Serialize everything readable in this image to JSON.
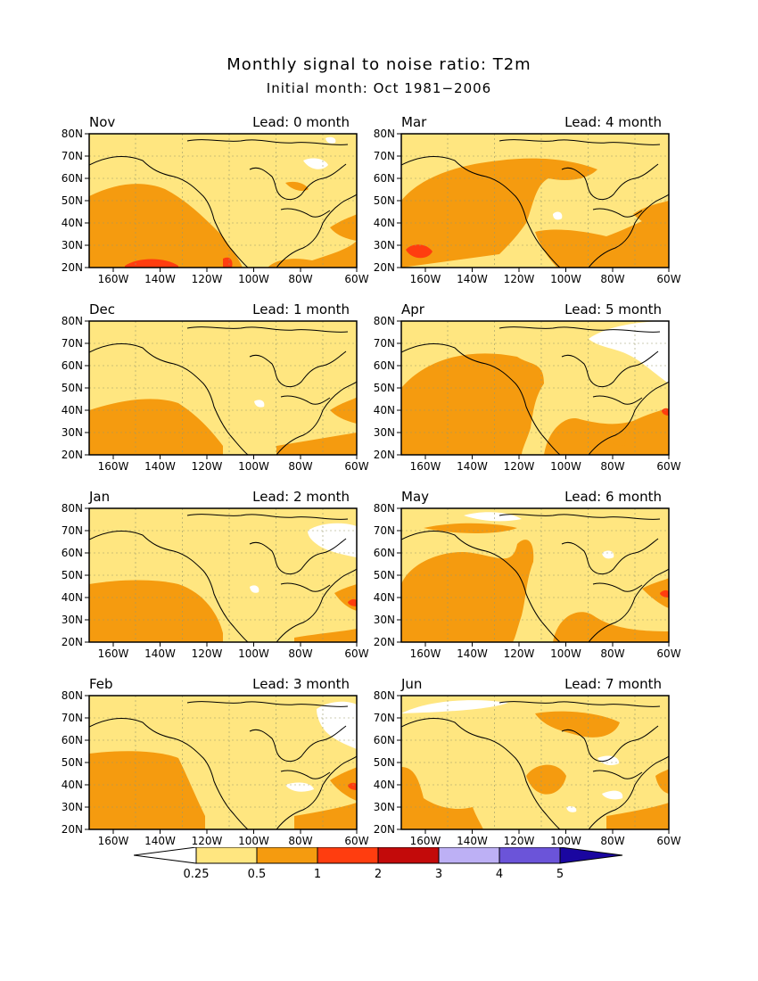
{
  "title": "Monthly signal to noise ratio: T2m",
  "subtitle": "Initial month: Oct 1981−2006",
  "lat_labels": [
    "80N",
    "70N",
    "60N",
    "50N",
    "40N",
    "30N",
    "20N"
  ],
  "lon_labels": [
    "160W",
    "140W",
    "120W",
    "100W",
    "80W",
    "60W"
  ],
  "panels": [
    {
      "month": "Nov",
      "lead": "Lead: 0 month"
    },
    {
      "month": "Mar",
      "lead": "Lead: 4 month"
    },
    {
      "month": "Dec",
      "lead": "Lead: 1 month"
    },
    {
      "month": "Apr",
      "lead": "Lead: 5 month"
    },
    {
      "month": "Jan",
      "lead": "Lead: 2 month"
    },
    {
      "month": "May",
      "lead": "Lead: 6 month"
    },
    {
      "month": "Feb",
      "lead": "Lead: 3 month"
    },
    {
      "month": "Jun",
      "lead": "Lead: 7 month"
    }
  ],
  "legend": {
    "ticks": [
      "0.25",
      "0.5",
      "1",
      "2",
      "3",
      "4",
      "5"
    ],
    "colors": [
      "#ffffff",
      "#ffe680",
      "#f59b0f",
      "#ff3d0f",
      "#c30a0a",
      "#bdb0f5",
      "#6b54d9",
      "#1a06a0"
    ]
  },
  "colors": {
    "low": "#ffe680",
    "medium": "#f59b0f",
    "high": "#ff3d0f",
    "below": "#ffffff"
  }
}
